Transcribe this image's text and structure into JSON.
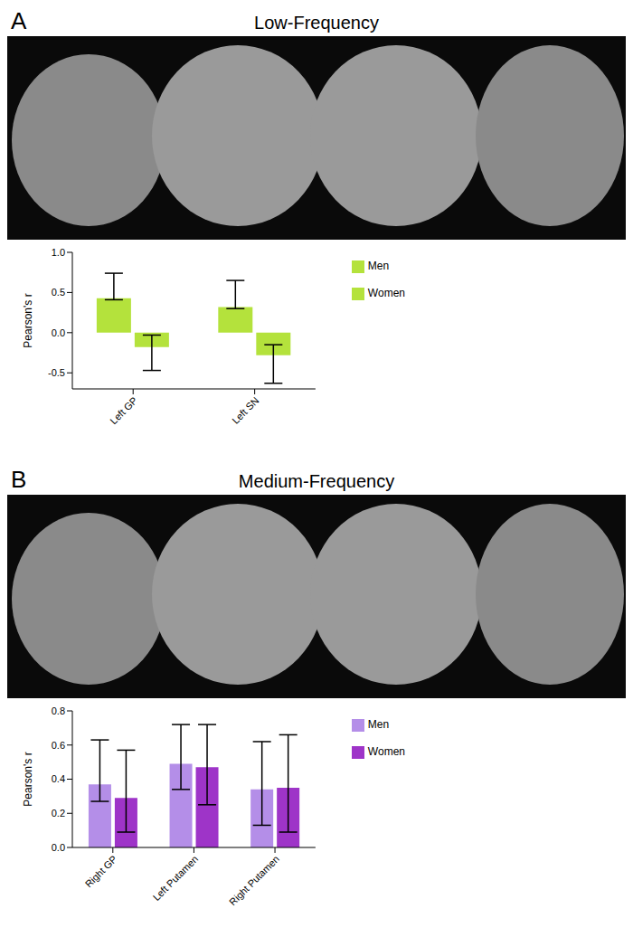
{
  "chart_data": [
    {
      "type": "bar",
      "panel_label": "A",
      "title": "Low-Frequency",
      "y_label": "Pearson's r",
      "categories": [
        "Left GP",
        "Left SN"
      ],
      "series": [
        {
          "name": "Men",
          "color": "#b4e23c",
          "values": [
            0.43,
            0.32
          ],
          "errors": [
            [
              0.02,
              0.31
            ],
            [
              0.02,
              0.33
            ]
          ]
        },
        {
          "name": "Women",
          "color": "#b4e23c",
          "values": [
            -0.18,
            -0.28
          ],
          "errors": [
            [
              0.29,
              0.15
            ],
            [
              0.35,
              0.13
            ]
          ]
        }
      ],
      "ylim": [
        -0.7,
        1.0
      ],
      "yticks": [
        -0.5,
        {
          "value": 0,
          "label": "0.0"
        },
        0.5,
        {
          "value": 1,
          "label": "1.0"
        }
      ],
      "legend": "right"
    },
    {
      "type": "bar",
      "panel_label": "B",
      "title": "Medium-Frequency",
      "y_label": "Pearson's r",
      "categories": [
        "Right GP",
        "Left Putamen",
        "Right Putamen"
      ],
      "series": [
        {
          "name": "Men",
          "color": "#b48ee8",
          "values": [
            0.37,
            0.49,
            0.34
          ],
          "errors": [
            [
              0.1,
              0.26
            ],
            [
              0.15,
              0.23
            ],
            [
              0.21,
              0.28
            ]
          ]
        },
        {
          "name": "Women",
          "color": "#9e34c8",
          "values": [
            0.29,
            0.47,
            0.35
          ],
          "errors": [
            [
              0.2,
              0.28
            ],
            [
              0.22,
              0.25
            ],
            [
              0.26,
              0.31
            ]
          ]
        }
      ],
      "ylim": [
        0,
        0.8
      ],
      "yticks": [
        {
          "value": 0,
          "label": "0.0"
        },
        0.2,
        0.4,
        0.6,
        0.8
      ],
      "legend": "right"
    }
  ]
}
